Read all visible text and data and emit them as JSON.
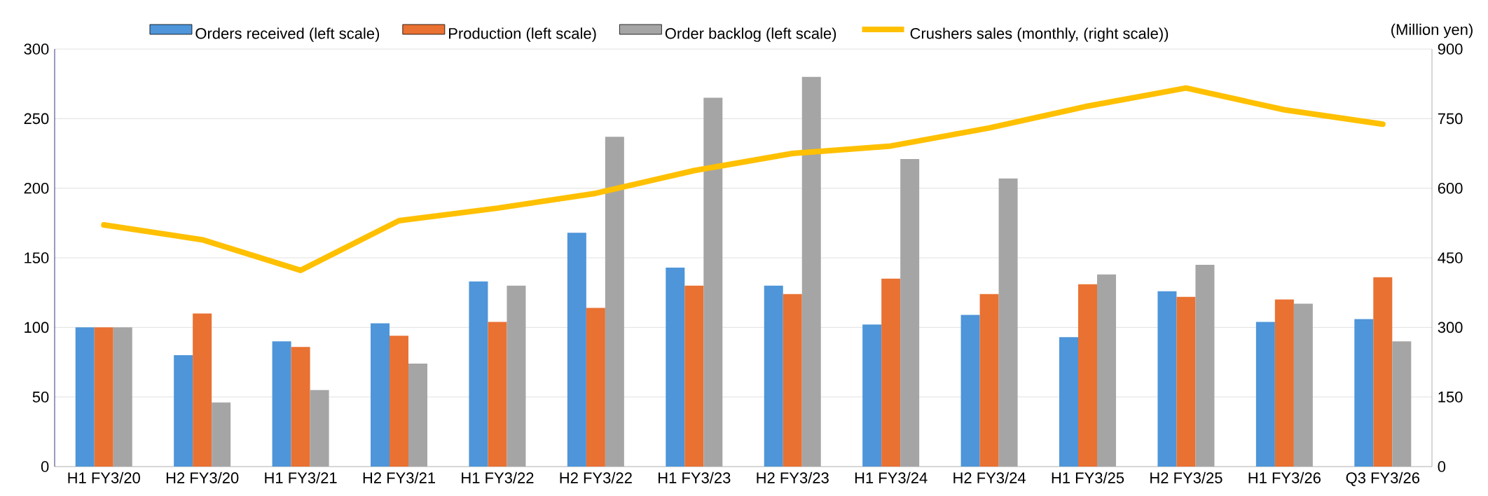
{
  "chart_data": {
    "type": "bar",
    "categories": [
      "H1 FY3/20",
      "H2 FY3/20",
      "H1 FY3/21",
      "H2 FY3/21",
      "H1 FY3/22",
      "H2 FY3/22",
      "H1 FY3/23",
      "H2 FY3/23",
      "H1 FY3/24",
      "H2 FY3/24",
      "H1 FY3/25",
      "H2 FY3/25",
      "H1 FY3/26",
      "Q3 FY3/26"
    ],
    "series": [
      {
        "name": "Orders received (left scale)",
        "color": "#4e95d9",
        "values": [
          100,
          80,
          90,
          103,
          133,
          168,
          143,
          130,
          102,
          109,
          93,
          126,
          104,
          106
        ]
      },
      {
        "name": "Production (left scale)",
        "color": "#e97132",
        "values": [
          100,
          110,
          86,
          94,
          104,
          114,
          130,
          124,
          135,
          124,
          131,
          122,
          120,
          136
        ]
      },
      {
        "name": "Order backlog (left scale)",
        "color": "#a5a5a5",
        "values": [
          100,
          46,
          55,
          74,
          130,
          237,
          265,
          280,
          221,
          207,
          138,
          145,
          117,
          90
        ]
      },
      {
        "name": "Crushers sales (monthly, (right scale))",
        "color": "#ffc000",
        "type": "line",
        "axis": "y2",
        "values": [
          521,
          489,
          423,
          530,
          557,
          589,
          638,
          675,
          691,
          730,
          777,
          816,
          769,
          738
        ]
      }
    ],
    "ylim": [
      0,
      300
    ],
    "yticks": [
      0,
      50,
      100,
      150,
      200,
      250,
      300
    ],
    "y2lim": [
      0,
      900
    ],
    "y2ticks": [
      0,
      150,
      300,
      450,
      600,
      750,
      900
    ],
    "y2label": "(Million yen)",
    "grid": "y",
    "legend": "top"
  }
}
